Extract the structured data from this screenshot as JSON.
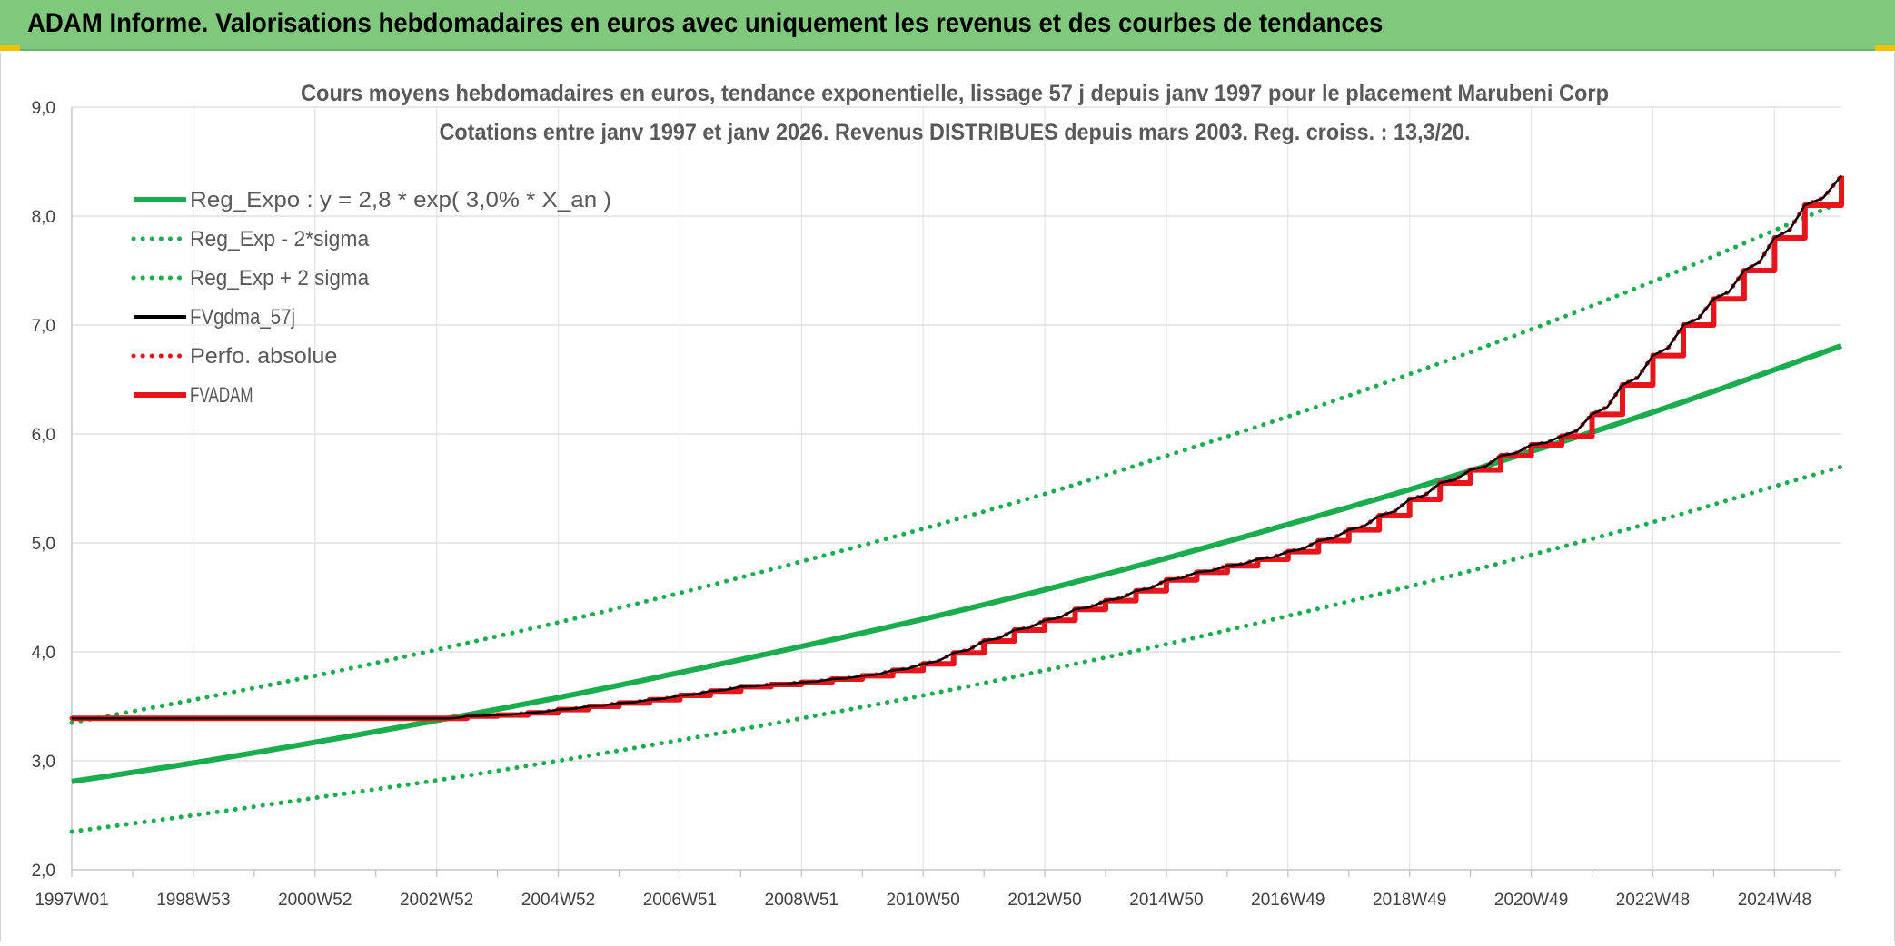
{
  "banner": {
    "title": "ADAM Informe. Valorisations hebdomadaires en euros avec uniquement les revenus et des courbes de tendances"
  },
  "colors": {
    "banner_bg": "#80c97c",
    "green": "#1aad4e",
    "red": "#e8141b",
    "black": "#000000",
    "corner_accent": "#f2c200"
  },
  "chart_data": {
    "type": "line",
    "title": "Cours moyens hebdomadaires en euros, tendance exponentielle, lissage 57 j depuis janv 1997 pour le placement Marubeni Corp",
    "subtitle": "Cotations entre janv 1997 et janv 2026. Revenus DISTRIBUES depuis mars 2003. Reg. croiss. : 13,3/20.",
    "xlabel": "",
    "ylabel": "",
    "x_range": [
      1997.0,
      2026.1
    ],
    "ylim": [
      2.0,
      9.0
    ],
    "y_ticks": [
      "2,0",
      "3,0",
      "4,0",
      "5,0",
      "6,0",
      "7,0",
      "8,0",
      "9,0"
    ],
    "y_tick_values": [
      2,
      3,
      4,
      5,
      6,
      7,
      8,
      9
    ],
    "x_tick_labels": [
      "1997W01",
      "1998W53",
      "2000W52",
      "2002W52",
      "2004W52",
      "2006W51",
      "2008W51",
      "2010W50",
      "2012W50",
      "2014W50",
      "2016W49",
      "2018W49",
      "2020W49",
      "2022W48",
      "2024W48"
    ],
    "x_tick_values": [
      1997.0,
      1999.0,
      2001.0,
      2003.0,
      2005.0,
      2007.0,
      2009.0,
      2011.0,
      2013.0,
      2015.0,
      2017.0,
      2019.0,
      2021.0,
      2023.0,
      2025.0
    ],
    "grid": true,
    "legend_position": "top-left",
    "series": [
      {
        "name": "Reg_Expo : y = 2,8 * exp( 3,0% *  X_an )",
        "style": "solid-thick",
        "color": "#1aad4e",
        "x": [
          1997,
          1999,
          2001,
          2003,
          2005,
          2007,
          2009,
          2011,
          2013,
          2015,
          2017,
          2019,
          2021,
          2023,
          2025,
          2026.1
        ],
        "y": [
          2.81,
          2.98,
          3.17,
          3.37,
          3.58,
          3.81,
          4.05,
          4.3,
          4.57,
          4.86,
          5.17,
          5.49,
          5.84,
          6.2,
          6.59,
          6.81
        ]
      },
      {
        "name": "Reg_Exp - 2*sigma",
        "style": "dotted",
        "color": "#1aad4e",
        "x": [
          1997,
          1999,
          2001,
          2003,
          2005,
          2007,
          2009,
          2011,
          2013,
          2015,
          2017,
          2019,
          2021,
          2023,
          2025,
          2026.1
        ],
        "y": [
          2.35,
          2.5,
          2.66,
          2.82,
          3.0,
          3.19,
          3.39,
          3.6,
          3.83,
          4.07,
          4.33,
          4.6,
          4.89,
          5.19,
          5.52,
          5.7
        ]
      },
      {
        "name": "Reg_Exp + 2 sigma",
        "style": "dotted",
        "color": "#1aad4e",
        "x": [
          1997,
          1999,
          2001,
          2003,
          2005,
          2007,
          2009,
          2011,
          2013,
          2015,
          2017,
          2019,
          2021,
          2023,
          2025,
          2026.1
        ],
        "y": [
          3.35,
          3.56,
          3.78,
          4.02,
          4.27,
          4.54,
          4.83,
          5.13,
          5.45,
          5.8,
          6.16,
          6.55,
          6.96,
          7.4,
          7.87,
          8.13
        ]
      },
      {
        "name": "FVgdma_57j",
        "style": "solid-thin",
        "color": "#000000",
        "x": [
          1997,
          2003.2,
          2005,
          2007,
          2009,
          2011,
          2012.5,
          2014,
          2016,
          2018,
          2019.5,
          2021,
          2022,
          2023,
          2024,
          2025,
          2026.1
        ],
        "y": [
          3.39,
          3.39,
          3.44,
          3.53,
          3.68,
          3.82,
          4.08,
          4.42,
          4.8,
          5.25,
          5.58,
          5.92,
          6.3,
          6.85,
          7.35,
          7.9,
          8.37
        ]
      },
      {
        "name": "Perfo. absolue",
        "style": "dotted",
        "color": "#e8141b",
        "x": [
          1997,
          2003.2,
          2005,
          2007,
          2009,
          2011,
          2012.5,
          2014,
          2016,
          2018,
          2019.5,
          2021,
          2022,
          2023,
          2024,
          2025,
          2026.1
        ],
        "y": [
          3.39,
          3.39,
          3.44,
          3.53,
          3.68,
          3.82,
          4.08,
          4.42,
          4.8,
          5.25,
          5.58,
          5.92,
          6.3,
          6.85,
          7.35,
          7.9,
          8.37
        ]
      },
      {
        "name": "FVADAM",
        "style": "steps-thick",
        "color": "#e8141b",
        "x": [
          1997,
          2003.2,
          2003.5,
          2004,
          2004.5,
          2005,
          2005.5,
          2006,
          2006.5,
          2007,
          2007.5,
          2008,
          2008.5,
          2009,
          2009.5,
          2010,
          2010.5,
          2011,
          2011.5,
          2012,
          2012.5,
          2013,
          2013.5,
          2014,
          2014.5,
          2015,
          2015.5,
          2016,
          2016.5,
          2017,
          2017.5,
          2018,
          2018.5,
          2019,
          2019.5,
          2020,
          2020.5,
          2021,
          2021.5,
          2022,
          2022.5,
          2023,
          2023.5,
          2024,
          2024.5,
          2025,
          2025.5,
          2026.1
        ],
        "y": [
          3.39,
          3.39,
          3.41,
          3.42,
          3.44,
          3.47,
          3.5,
          3.53,
          3.56,
          3.6,
          3.64,
          3.68,
          3.7,
          3.72,
          3.75,
          3.78,
          3.83,
          3.89,
          3.99,
          4.1,
          4.2,
          4.29,
          4.39,
          4.47,
          4.56,
          4.66,
          4.73,
          4.79,
          4.85,
          4.92,
          5.02,
          5.12,
          5.25,
          5.4,
          5.55,
          5.67,
          5.8,
          5.9,
          5.98,
          6.18,
          6.45,
          6.72,
          7.0,
          7.24,
          7.5,
          7.8,
          8.1,
          8.37
        ]
      }
    ]
  }
}
